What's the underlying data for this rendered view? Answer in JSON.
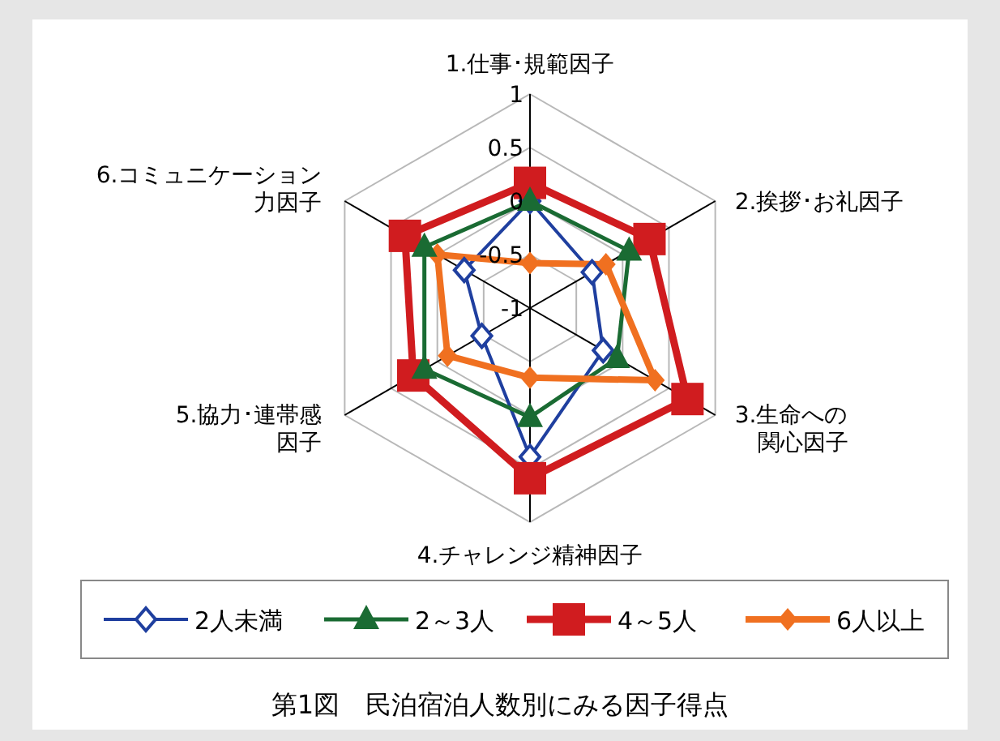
{
  "chart_data": {
    "type": "radar",
    "title": "第1図　民泊宿泊人数別にみる因子得点",
    "categories": [
      "1.仕事･規範因子",
      "2.挨拶･お礼因子",
      "3.生命への関心因子",
      "4.チャレンジ精神因子",
      "5.協力･連帯感因子",
      "6.コミュニケーション力因子"
    ],
    "ylim": [
      -1,
      1
    ],
    "yticks": [
      -1,
      -0.5,
      0,
      0.5,
      1
    ],
    "grid": true,
    "legend": "bottom",
    "series": [
      {
        "name": "2人未満",
        "color": "#1f3f9f",
        "marker": "diamond-open",
        "values": [
          0.0,
          -0.33,
          -0.21,
          0.39,
          -0.48,
          -0.29
        ]
      },
      {
        "name": "2～3人",
        "color": "#1a6b33",
        "marker": "triangle",
        "values": [
          0.0,
          0.07,
          -0.06,
          0.02,
          0.14,
          0.14
        ]
      },
      {
        "name": "4～5人",
        "color": "#d01c1f",
        "marker": "square",
        "values": [
          0.17,
          0.29,
          0.7,
          0.59,
          0.26,
          0.35
        ]
      },
      {
        "name": "6人以上",
        "color": "#f07020",
        "marker": "diamond",
        "values": [
          -0.58,
          -0.18,
          0.35,
          -0.35,
          -0.11,
          0.0
        ]
      }
    ]
  }
}
